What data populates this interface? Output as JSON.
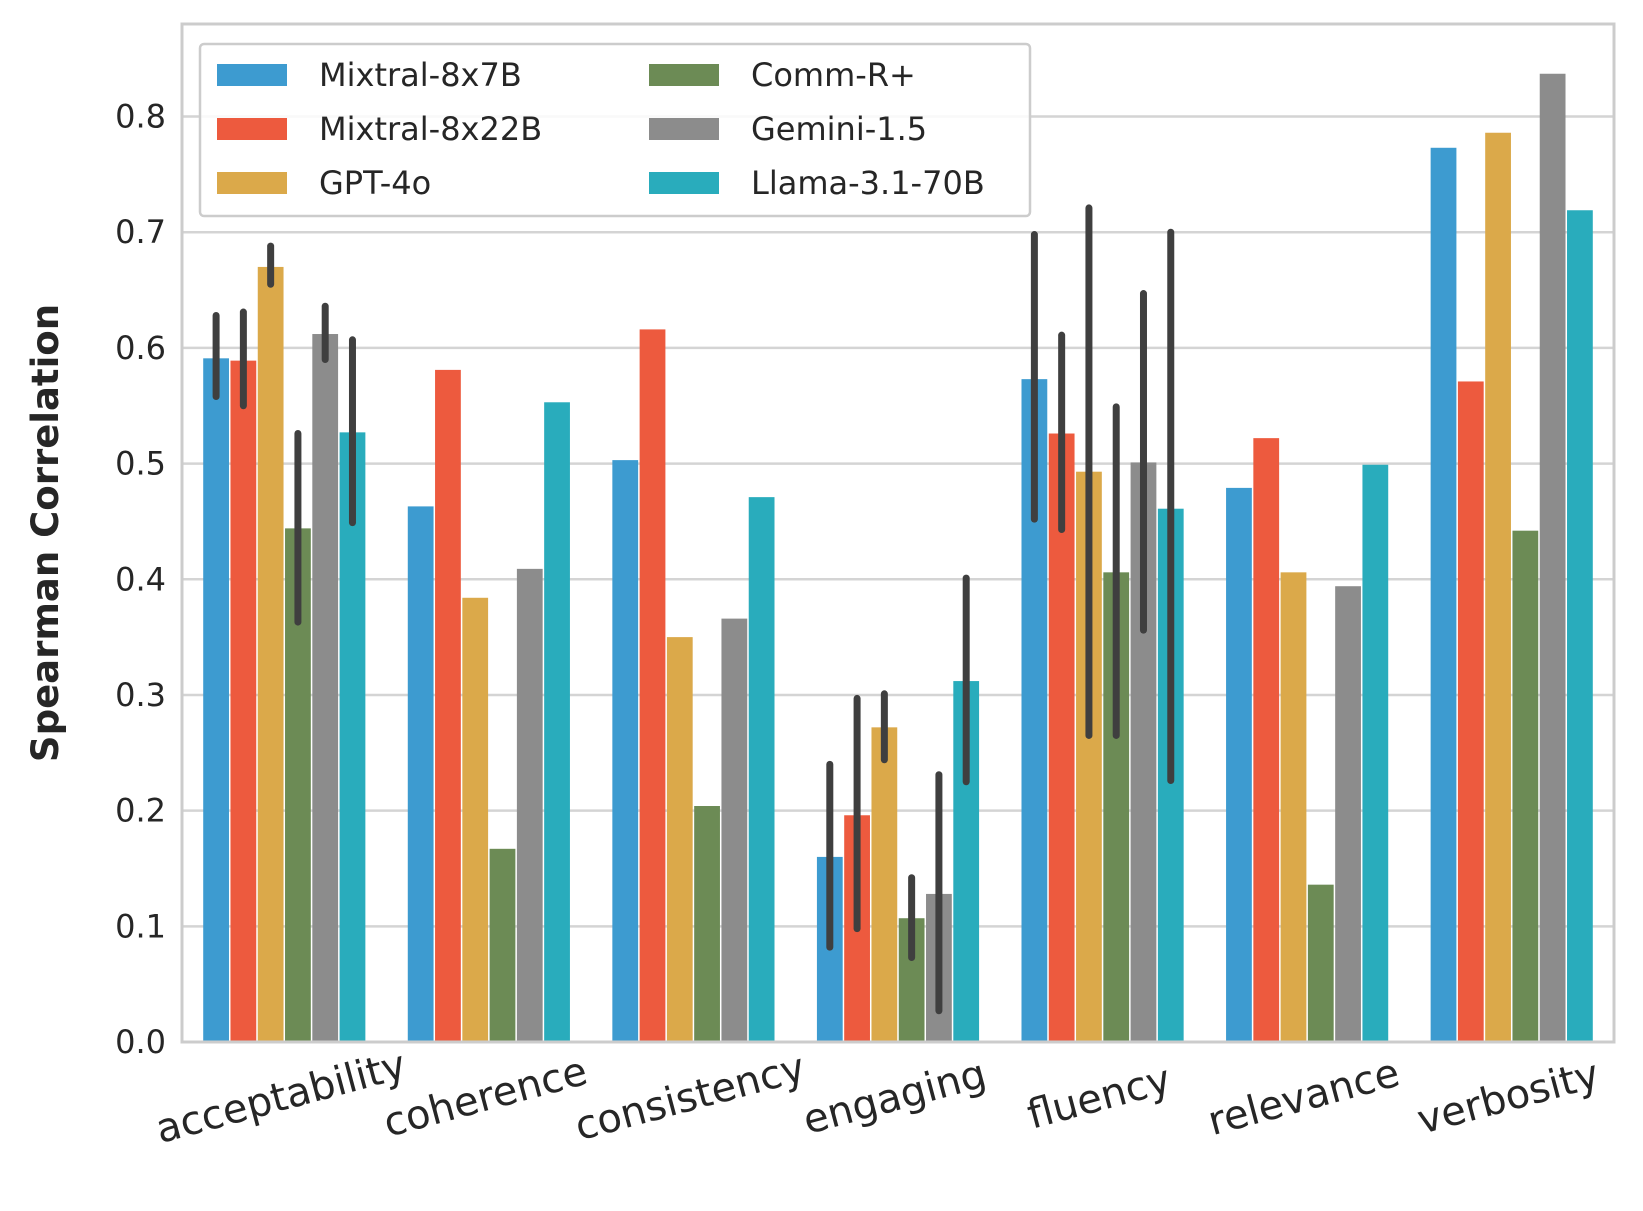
{
  "chart_data": {
    "type": "bar",
    "title": "",
    "xlabel": "",
    "ylabel": "Spearman Correlation",
    "ylim": [
      0,
      0.88
    ],
    "yticks": [
      "0.0",
      "0.1",
      "0.2",
      "0.3",
      "0.4",
      "0.5",
      "0.6",
      "0.7",
      "0.8"
    ],
    "grid": true,
    "legend_position": "top-left",
    "categories": [
      "acceptability",
      "coherence",
      "consistency",
      "engaging",
      "fluency",
      "relevance",
      "verbosity"
    ],
    "series": [
      {
        "name": "Mixtral-8x7B",
        "color": "#3d9bd0",
        "values": [
          0.591,
          0.463,
          0.503,
          0.16,
          0.573,
          0.479,
          0.773
        ],
        "errors": [
          [
            0.558,
            0.628
          ],
          null,
          null,
          [
            0.082,
            0.24
          ],
          [
            0.452,
            0.698
          ],
          null,
          null
        ]
      },
      {
        "name": "Mixtral-8x22B",
        "color": "#ed5a3e",
        "values": [
          0.589,
          0.581,
          0.616,
          0.196,
          0.526,
          0.522,
          0.571
        ],
        "errors": [
          [
            0.55,
            0.631
          ],
          null,
          null,
          [
            0.098,
            0.297
          ],
          [
            0.443,
            0.611
          ],
          null,
          null
        ]
      },
      {
        "name": "GPT-4o",
        "color": "#dba94a",
        "values": [
          0.67,
          0.384,
          0.35,
          0.272,
          0.493,
          0.406,
          0.786
        ],
        "errors": [
          [
            0.655,
            0.688
          ],
          null,
          null,
          [
            0.244,
            0.301
          ],
          [
            0.265,
            0.721
          ],
          null,
          null
        ]
      },
      {
        "name": "Comm-R+",
        "color": "#6c8b55",
        "values": [
          0.444,
          0.167,
          0.204,
          0.107,
          0.406,
          0.136,
          0.442
        ],
        "errors": [
          [
            0.363,
            0.526
          ],
          null,
          null,
          [
            0.073,
            0.142
          ],
          [
            0.265,
            0.549
          ],
          null,
          null
        ]
      },
      {
        "name": "Gemini-1.5",
        "color": "#8c8c8c",
        "values": [
          0.612,
          0.409,
          0.366,
          0.128,
          0.501,
          0.394,
          0.837
        ],
        "errors": [
          [
            0.59,
            0.636
          ],
          null,
          null,
          [
            0.027,
            0.231
          ],
          [
            0.356,
            0.647
          ],
          null,
          null
        ]
      },
      {
        "name": "Llama-3.1-70B",
        "color": "#29acbc",
        "values": [
          0.527,
          0.553,
          0.471,
          0.312,
          0.461,
          0.499,
          0.719
        ],
        "errors": [
          [
            0.449,
            0.607
          ],
          null,
          null,
          [
            0.225,
            0.401
          ],
          [
            0.226,
            0.7
          ],
          null,
          null
        ]
      }
    ]
  }
}
